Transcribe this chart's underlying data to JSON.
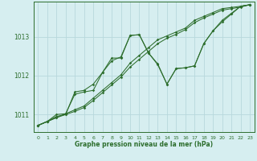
{
  "xlabel": "Graphe pression niveau de la mer (hPa)",
  "background_color": "#d6eef0",
  "grid_color": "#b8d8dc",
  "line_color": "#2d6e2d",
  "ylim": [
    1010.55,
    1013.9
  ],
  "xlim": [
    -0.5,
    23.5
  ],
  "yticks": [
    1011,
    1012,
    1013
  ],
  "xticks": [
    0,
    1,
    2,
    3,
    4,
    5,
    6,
    7,
    8,
    9,
    10,
    11,
    12,
    13,
    14,
    15,
    16,
    17,
    18,
    19,
    20,
    21,
    22,
    23
  ],
  "series1": {
    "x": [
      0,
      1,
      2,
      3,
      4,
      5,
      6,
      7,
      8,
      9,
      10,
      11,
      12,
      13,
      14,
      15,
      16,
      17,
      18,
      19,
      20,
      21,
      22,
      23
    ],
    "y": [
      1010.72,
      1010.82,
      1010.92,
      1011.02,
      1011.12,
      1011.22,
      1011.42,
      1011.62,
      1011.82,
      1012.02,
      1012.32,
      1012.52,
      1012.72,
      1012.92,
      1013.02,
      1013.12,
      1013.22,
      1013.42,
      1013.52,
      1013.62,
      1013.72,
      1013.75,
      1013.78,
      1013.82
    ]
  },
  "series2": {
    "x": [
      0,
      1,
      2,
      3,
      4,
      5,
      6,
      7,
      8,
      9,
      10,
      11,
      12,
      13,
      14,
      15,
      16,
      17,
      18,
      19,
      20,
      21,
      22,
      23
    ],
    "y": [
      1010.72,
      1010.82,
      1010.92,
      1011.0,
      1011.08,
      1011.18,
      1011.36,
      1011.56,
      1011.76,
      1011.96,
      1012.22,
      1012.42,
      1012.62,
      1012.82,
      1012.96,
      1013.06,
      1013.18,
      1013.36,
      1013.48,
      1013.58,
      1013.68,
      1013.72,
      1013.76,
      1013.82
    ]
  },
  "series3": {
    "x": [
      0,
      1,
      2,
      3,
      4,
      5,
      6,
      7,
      8,
      9,
      10,
      11,
      12,
      13,
      14,
      15,
      16,
      17,
      18,
      19,
      20,
      21,
      22,
      23
    ],
    "y": [
      1010.72,
      1010.82,
      1010.95,
      1011.0,
      1011.58,
      1011.62,
      1011.78,
      1012.08,
      1012.38,
      1012.48,
      1013.03,
      1013.05,
      1012.58,
      1012.3,
      1011.78,
      1012.18,
      1012.2,
      1012.25,
      1012.82,
      1013.15,
      1013.42,
      1013.6,
      1013.78,
      1013.82
    ]
  },
  "series4": {
    "x": [
      0,
      1,
      2,
      3,
      4,
      5,
      6,
      7,
      8,
      9,
      10,
      11,
      12,
      13,
      14,
      15,
      16,
      17,
      18,
      19,
      20,
      21,
      22,
      23
    ],
    "y": [
      1010.72,
      1010.82,
      1011.0,
      1011.02,
      1011.52,
      1011.58,
      1011.62,
      1012.08,
      1012.45,
      1012.45,
      1013.03,
      1013.05,
      1012.58,
      1012.28,
      1011.78,
      1012.18,
      1012.2,
      1012.25,
      1012.82,
      1013.15,
      1013.38,
      1013.58,
      1013.78,
      1013.82
    ]
  }
}
